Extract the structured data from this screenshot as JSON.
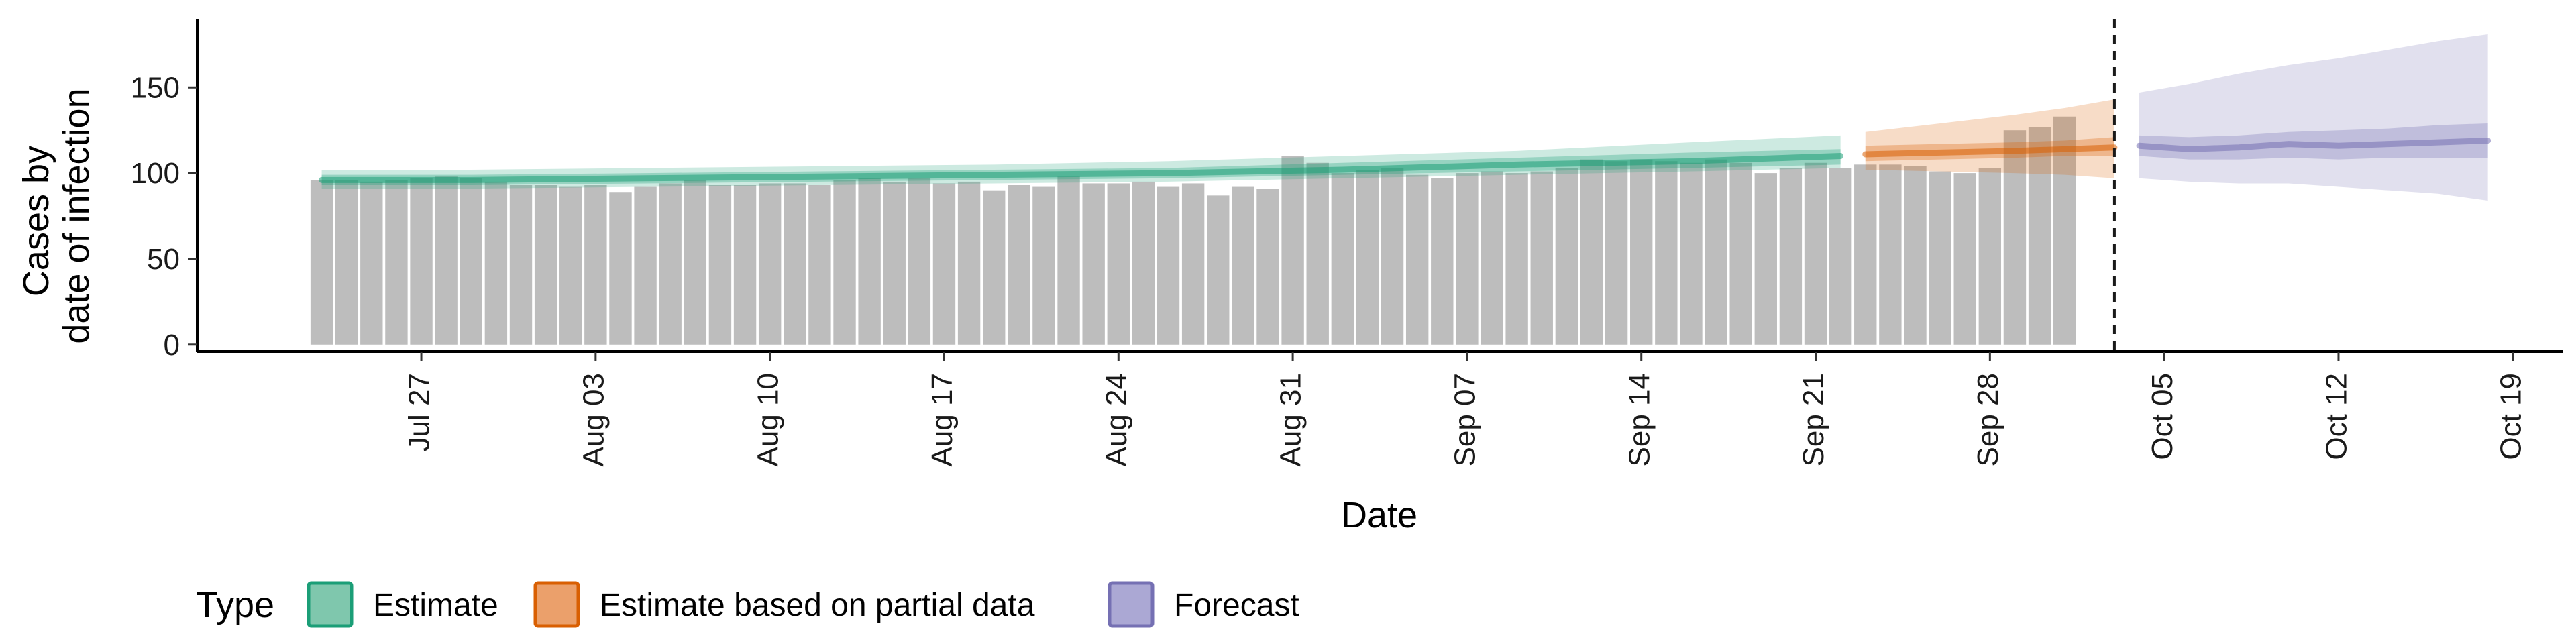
{
  "chart_data": {
    "type": "bar",
    "xlabel": "Date",
    "ylabel_lines": [
      "Cases by",
      "date of infection"
    ],
    "ylim": [
      -4,
      190
    ],
    "yticks": [
      0,
      50,
      100,
      150
    ],
    "xlim": [
      "2020-07-18",
      "2020-10-21"
    ],
    "xticks": [
      "2020-07-27",
      "2020-08-03",
      "2020-08-10",
      "2020-08-17",
      "2020-08-24",
      "2020-08-31",
      "2020-09-07",
      "2020-09-14",
      "2020-09-21",
      "2020-09-28",
      "2020-10-05",
      "2020-10-12",
      "2020-10-19"
    ],
    "xtick_labels": [
      "Jul 27",
      "Aug 03",
      "Aug 10",
      "Aug 17",
      "Aug 24",
      "Aug 31",
      "Sep 07",
      "Sep 14",
      "Sep 21",
      "Sep 28",
      "Oct 05",
      "Oct 12",
      "Oct 19"
    ],
    "bar_color": "#bdbdbd",
    "bars": {
      "start_date": "2020-07-23",
      "values": [
        96,
        96,
        95,
        96,
        97,
        98,
        97,
        95,
        93,
        93,
        92,
        93,
        89,
        92,
        94,
        96,
        93,
        93,
        94,
        94,
        93,
        96,
        97,
        95,
        97,
        94,
        95,
        90,
        93,
        92,
        98,
        94,
        94,
        95,
        92,
        94,
        87,
        92,
        91,
        110,
        106,
        100,
        102,
        103,
        99,
        97,
        100,
        101,
        100,
        101,
        103,
        108,
        107,
        108,
        107,
        106,
        108,
        106,
        100,
        103,
        106,
        103,
        105,
        105,
        104,
        101,
        100,
        103,
        125,
        127,
        133
      ]
    },
    "forecast_line_date": "2020-10-03",
    "series": [
      {
        "name": "Estimate",
        "color": "#1b9e77",
        "dates": [
          "2020-07-23",
          "2020-07-29",
          "2020-08-05",
          "2020-08-12",
          "2020-08-19",
          "2020-08-26",
          "2020-09-02",
          "2020-09-09",
          "2020-09-16",
          "2020-09-22"
        ],
        "median": [
          96,
          96,
          97,
          98,
          99,
          100,
          102,
          105,
          107,
          110
        ],
        "lower50": [
          93,
          93,
          94,
          95,
          96,
          97,
          99,
          101,
          103,
          105
        ],
        "upper50": [
          99,
          99,
          100,
          101,
          102,
          103,
          106,
          109,
          112,
          114
        ],
        "lower90": [
          91,
          91,
          92,
          93,
          94,
          95,
          97,
          99,
          101,
          103
        ],
        "upper90": [
          102,
          102,
          103,
          104,
          105,
          107,
          110,
          113,
          118,
          122
        ]
      },
      {
        "name": "Estimate based on partial data",
        "color": "#d95f02",
        "dates": [
          "2020-09-23",
          "2020-09-26",
          "2020-09-29",
          "2020-10-01",
          "2020-10-03"
        ],
        "median": [
          111,
          112,
          113,
          114,
          115
        ],
        "lower50": [
          107,
          108,
          109,
          110,
          110
        ],
        "upper50": [
          116,
          117,
          118,
          119,
          121
        ],
        "lower90": [
          102,
          101,
          100,
          99,
          97
        ],
        "upper90": [
          124,
          129,
          134,
          138,
          143
        ]
      },
      {
        "name": "Forecast",
        "color": "#7570b3",
        "dates": [
          "2020-10-04",
          "2020-10-06",
          "2020-10-08",
          "2020-10-10",
          "2020-10-12",
          "2020-10-14",
          "2020-10-16",
          "2020-10-18"
        ],
        "median": [
          116,
          114,
          115,
          117,
          116,
          117,
          118,
          119
        ],
        "lower50": [
          110,
          108,
          108,
          109,
          108,
          109,
          109,
          109
        ],
        "upper50": [
          122,
          121,
          122,
          124,
          125,
          126,
          128,
          129
        ],
        "lower90": [
          97,
          95,
          94,
          94,
          92,
          90,
          88,
          84
        ],
        "upper90": [
          147,
          152,
          158,
          163,
          167,
          172,
          177,
          181
        ]
      }
    ],
    "legend": {
      "title": "Type",
      "position": "bottom-left",
      "items": [
        {
          "label": "Estimate",
          "fill": "#7fc7ad",
          "stroke": "#1b9e77"
        },
        {
          "label": "Estimate based on partial data",
          "fill": "#eba06b",
          "stroke": "#d95f02"
        },
        {
          "label": "Forecast",
          "fill": "#aba8d4",
          "stroke": "#7570b3"
        }
      ]
    },
    "grid": false
  }
}
